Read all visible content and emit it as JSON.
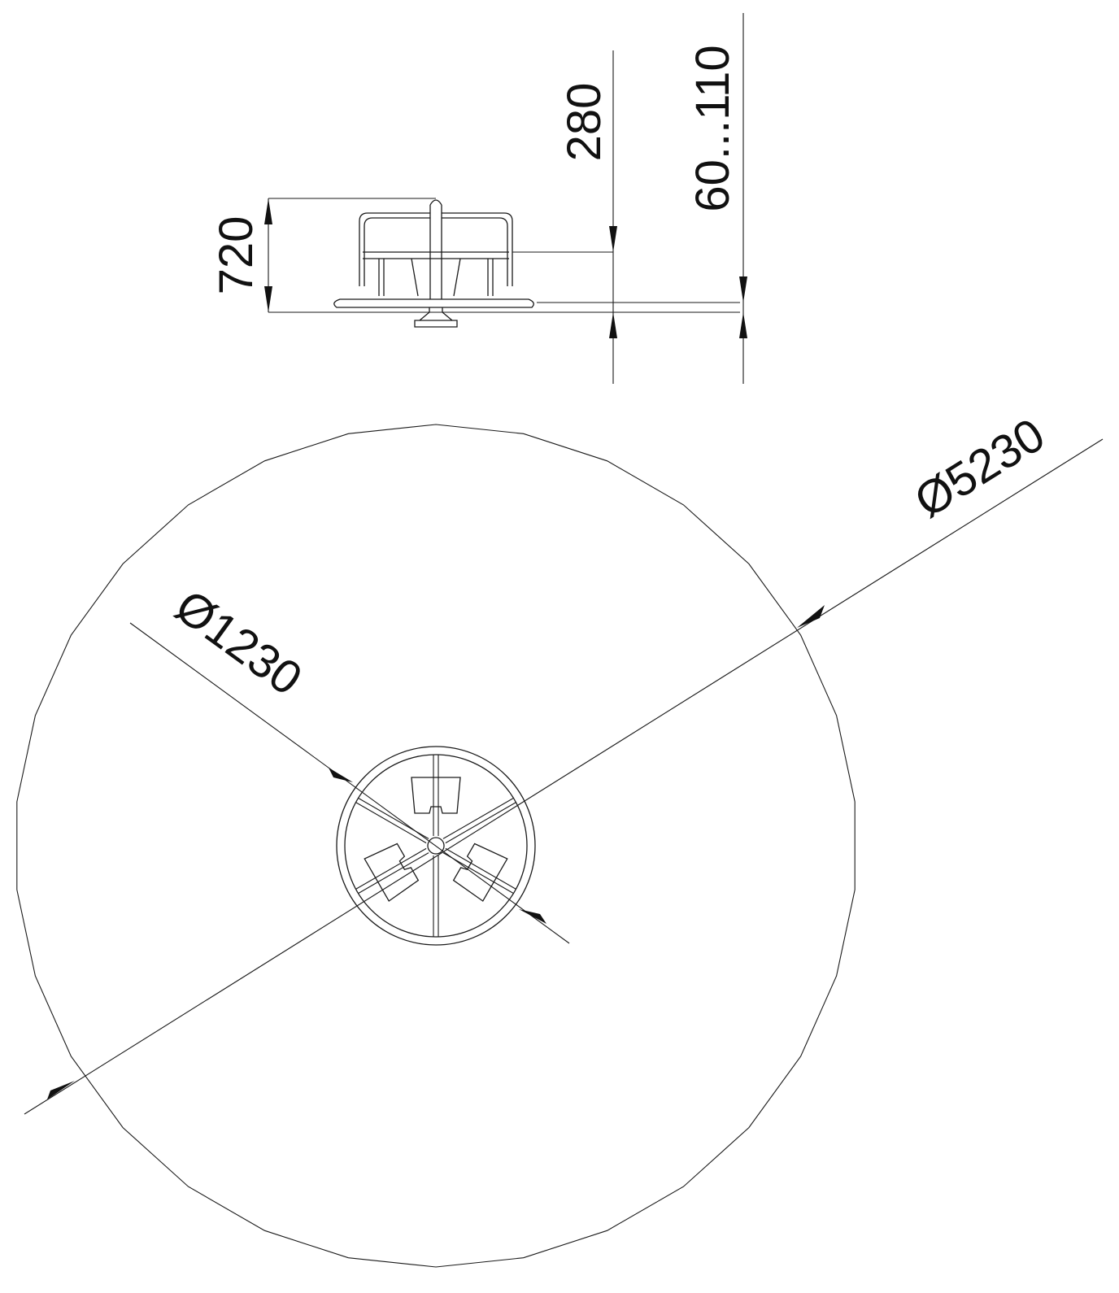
{
  "dimensions": {
    "side_view": {
      "overall_height": "720",
      "seat_to_top": "280",
      "ground_clearance": "60...110"
    },
    "plan_view": {
      "platform_diameter": "Ø1230",
      "safety_area_diameter": "Ø5230"
    }
  },
  "colors": {
    "line": "#1a1a1a",
    "background": "#ffffff"
  }
}
